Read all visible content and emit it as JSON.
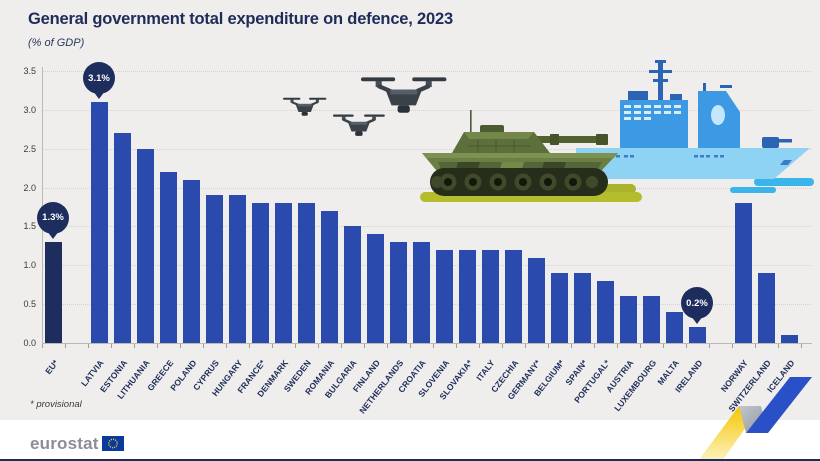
{
  "header": {
    "title": "General government total expenditure on defence, 2023",
    "subtitle": "(% of GDP)"
  },
  "footnote": "* provisional",
  "logo": {
    "text": "eurostat",
    "flag_icon": "eu-flag-icon"
  },
  "colors": {
    "background": "#efeeec",
    "bar_blue": "#2b4aad",
    "eu_bar_navy": "#1d2d5e",
    "bubble_navy": "#1d2d5e",
    "title_navy": "#1e2c5a",
    "footer_white": "#ffffff",
    "ribbon_yellow": "#f5c500",
    "ribbon_gray": "#9aa0a8",
    "ribbon_blue": "#2a50c8",
    "eu_flag_blue": "#0a3a9e",
    "eu_flag_stars": "#ffd617"
  },
  "illustrations": {
    "drones": "drone-swarm-illustration",
    "tank": "tank-illustration",
    "ship": "navy-ship-illustration",
    "swoosh": "eurostat-swoosh-decoration"
  },
  "chart_data": {
    "type": "bar",
    "title": "General government total expenditure on defence, 2023",
    "xlabel": "",
    "ylabel": "% of GDP",
    "ylim": [
      0,
      3.5
    ],
    "ytick_step": 0.5,
    "yticks": [
      "3.5",
      "3.0",
      "2.5",
      "2.0",
      "1.5",
      "1.0",
      "0.5",
      "0.0"
    ],
    "grid": "dotted horizontal gridlines",
    "legend": "none",
    "bars": [
      {
        "label": "EU*",
        "value": 1.3,
        "callout": "1.3%",
        "color_role": "eu"
      },
      {
        "label": "LATVIA",
        "value": 3.1,
        "callout": "3.1%",
        "gap_before": true
      },
      {
        "label": "ESTONIA",
        "value": 2.7
      },
      {
        "label": "LITHUANIA",
        "value": 2.5
      },
      {
        "label": "GREECE",
        "value": 2.2
      },
      {
        "label": "POLAND",
        "value": 2.1
      },
      {
        "label": "CYPRUS",
        "value": 1.9
      },
      {
        "label": "HUNGARY",
        "value": 1.9
      },
      {
        "label": "FRANCE*",
        "value": 1.8
      },
      {
        "label": "DENMARK",
        "value": 1.8
      },
      {
        "label": "SWEDEN",
        "value": 1.8
      },
      {
        "label": "ROMANIA",
        "value": 1.7
      },
      {
        "label": "BULGARIA",
        "value": 1.5
      },
      {
        "label": "FINLAND",
        "value": 1.4
      },
      {
        "label": "NETHERLANDS",
        "value": 1.3
      },
      {
        "label": "CROATIA",
        "value": 1.3
      },
      {
        "label": "SLOVENIA",
        "value": 1.2
      },
      {
        "label": "SLOVAKIA*",
        "value": 1.2
      },
      {
        "label": "ITALY",
        "value": 1.2
      },
      {
        "label": "CZECHIA",
        "value": 1.2
      },
      {
        "label": "GERMANY*",
        "value": 1.1
      },
      {
        "label": "BELGIUM*",
        "value": 0.9
      },
      {
        "label": "SPAIN*",
        "value": 0.9
      },
      {
        "label": "PORTUGAL*",
        "value": 0.8
      },
      {
        "label": "AUSTRIA",
        "value": 0.6
      },
      {
        "label": "LUXEMBOURG",
        "value": 0.6
      },
      {
        "label": "MALTA",
        "value": 0.4
      },
      {
        "label": "IRELAND",
        "value": 0.2,
        "callout": "0.2%"
      },
      {
        "label": "NORWAY",
        "value": 1.8,
        "gap_before": true
      },
      {
        "label": "SWITZERLAND",
        "value": 0.9
      },
      {
        "label": "ICELAND",
        "value": 0.1
      }
    ]
  }
}
